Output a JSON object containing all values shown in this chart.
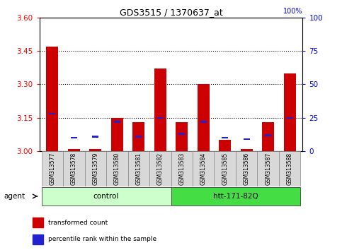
{
  "title": "GDS3515 / 1370637_at",
  "samples": [
    "GSM313577",
    "GSM313578",
    "GSM313579",
    "GSM313580",
    "GSM313581",
    "GSM313582",
    "GSM313583",
    "GSM313584",
    "GSM313585",
    "GSM313586",
    "GSM313587",
    "GSM313588"
  ],
  "red_values": [
    3.47,
    3.01,
    3.01,
    3.15,
    3.13,
    3.37,
    3.13,
    3.3,
    3.05,
    3.01,
    3.13,
    3.35
  ],
  "blue_pct": [
    28,
    10,
    11,
    22,
    11,
    25,
    13,
    22,
    10,
    9,
    12,
    25
  ],
  "y_min": 3.0,
  "y_max": 3.6,
  "y_ticks_left": [
    3.0,
    3.15,
    3.3,
    3.45,
    3.6
  ],
  "y_ticks_right": [
    0,
    25,
    50,
    75,
    100
  ],
  "red_color": "#cc0000",
  "blue_color": "#2222cc",
  "bar_width": 0.55,
  "blue_bar_width": 0.3,
  "control_color": "#ccffcc",
  "htt_color": "#44dd44",
  "bg_color": "#d8d8d8",
  "agent_label": "agent",
  "legend_red": "transformed count",
  "legend_blue": "percentile rank within the sample"
}
